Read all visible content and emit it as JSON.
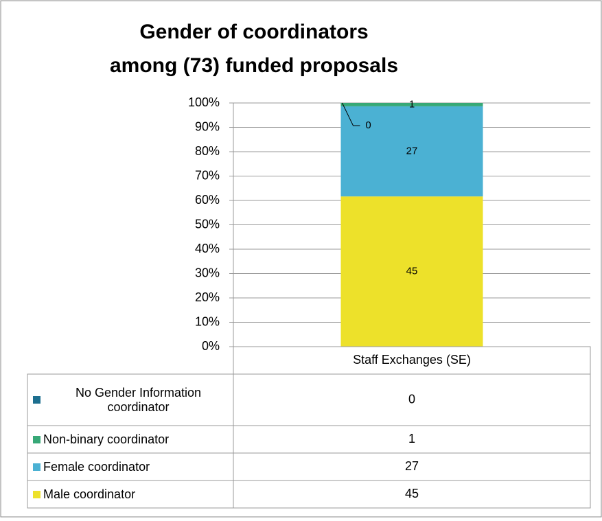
{
  "chart_data": {
    "type": "bar",
    "stacking": "percent",
    "title": [
      "Gender of coordinators",
      "among (73) funded proposals"
    ],
    "categories": [
      "Staff Exchanges (SE)"
    ],
    "series": [
      {
        "name": "Male coordinator",
        "color": "#ede12a",
        "values": [
          45
        ]
      },
      {
        "name": "Female coordinator",
        "color": "#4bb1d3",
        "values": [
          27
        ]
      },
      {
        "name": "Non-binary coordinator",
        "color": "#37a877",
        "values": [
          1
        ]
      },
      {
        "name": "No Gender Information coordinator",
        "color": "#1d6f8f",
        "values": [
          0
        ]
      }
    ],
    "ylim": [
      0,
      100
    ],
    "yticks": [
      {
        "value": 0,
        "label": "0%"
      },
      {
        "value": 10,
        "label": "10%"
      },
      {
        "value": 20,
        "label": "20%"
      },
      {
        "value": 30,
        "label": "30%"
      },
      {
        "value": 40,
        "label": "40%"
      },
      {
        "value": 50,
        "label": "50%"
      },
      {
        "value": 60,
        "label": "60%"
      },
      {
        "value": 70,
        "label": "70%"
      },
      {
        "value": 80,
        "label": "80%"
      },
      {
        "value": 90,
        "label": "90%"
      },
      {
        "value": 100,
        "label": "100%"
      }
    ],
    "grid": true,
    "data_table": true
  }
}
